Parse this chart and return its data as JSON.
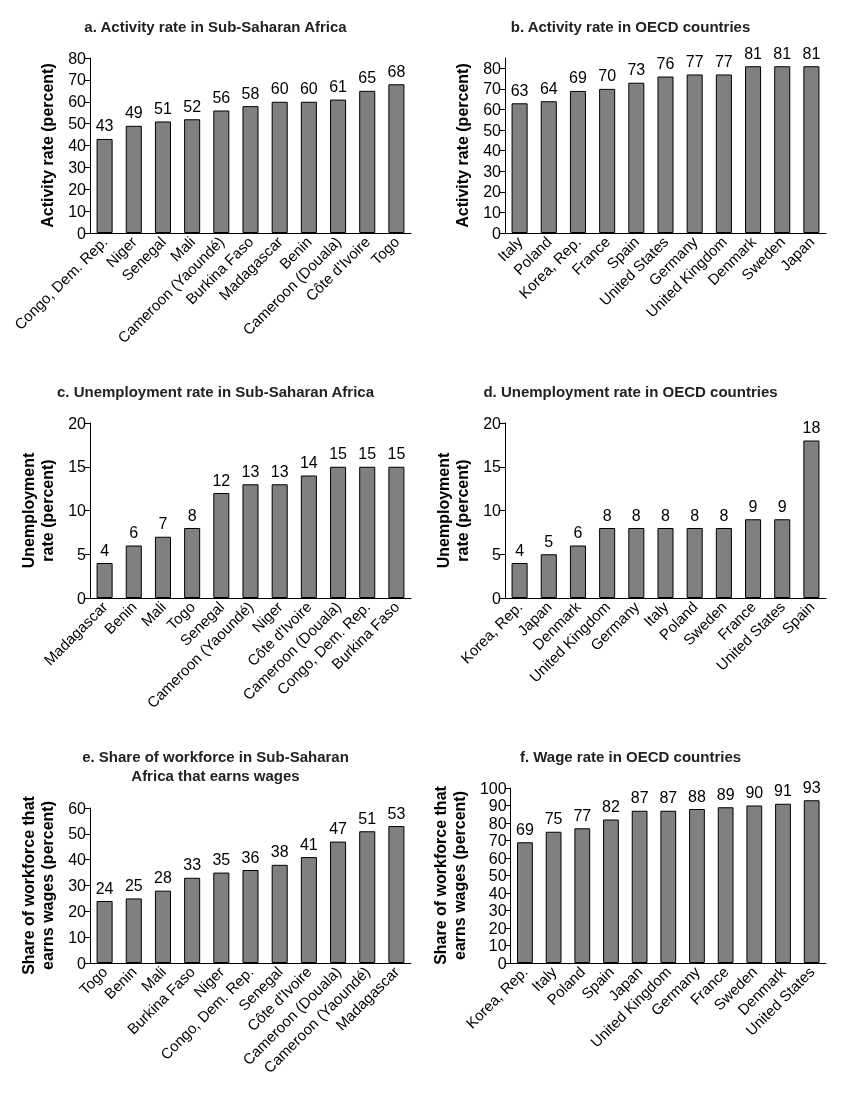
{
  "chart_data": [
    {
      "type": "bar",
      "title": "a. Activity rate in Sub-Saharan Africa",
      "ylabel": "Activity rate (percent)",
      "categories": [
        "Congo, Dem. Rep.",
        "Niger",
        "Senegal",
        "Mali",
        "Cameroon (Yaoundé)",
        "Burkina Faso",
        "Madagascar",
        "Benin",
        "Cameroon (Douala)",
        "Côte d'Ivoire",
        "Togo"
      ],
      "values": [
        43,
        49,
        51,
        52,
        56,
        58,
        60,
        60,
        61,
        65,
        68
      ],
      "color": "#808080",
      "ylim": [
        0,
        80
      ],
      "yticks": [
        0,
        10,
        20,
        30,
        40,
        50,
        60,
        70,
        80
      ],
      "data_labels": true,
      "grid": false
    },
    {
      "type": "bar",
      "title": "b. Activity rate in OECD countries",
      "ylabel": "Activity rate (percent)",
      "categories": [
        "Italy",
        "Poland",
        "Korea, Rep.",
        "France",
        "Spain",
        "United States",
        "Germany",
        "United Kingdom",
        "Denmark",
        "Sweden",
        "Japan"
      ],
      "values": [
        63,
        64,
        69,
        70,
        73,
        76,
        77,
        77,
        81,
        81,
        81
      ],
      "color": "#808080",
      "ylim": [
        0,
        85
      ],
      "yticks": [
        0,
        10,
        20,
        30,
        40,
        50,
        60,
        70,
        80
      ],
      "data_labels": true,
      "grid": false
    },
    {
      "type": "bar",
      "title": "c. Unemployment rate in Sub-Saharan Africa",
      "ylabel": "Unemployment\nrate (percent)",
      "categories": [
        "Madagascar",
        "Benin",
        "Mali",
        "Togo",
        "Senegal",
        "Cameroon (Yaoundé)",
        "Niger",
        "Côte d'Ivoire",
        "Cameroon (Douala)",
        "Congo, Dem. Rep.",
        "Burkina Faso"
      ],
      "values": [
        4,
        6,
        7,
        8,
        12,
        13,
        13,
        14,
        15,
        15,
        15
      ],
      "color": "#808080",
      "ylim": [
        0,
        20
      ],
      "yticks": [
        0,
        5,
        10,
        15,
        20
      ],
      "data_labels": true,
      "grid": false
    },
    {
      "type": "bar",
      "title": "d. Unemployment rate in OECD countries",
      "ylabel": "Unemployment\nrate (percent)",
      "categories": [
        "Korea, Rep.",
        "Japan",
        "Denmark",
        "United Kingdom",
        "Germany",
        "Italy",
        "Poland",
        "Sweden",
        "France",
        "United States",
        "Spain"
      ],
      "values": [
        4,
        5,
        6,
        8,
        8,
        8,
        8,
        8,
        9,
        9,
        18
      ],
      "color": "#808080",
      "ylim": [
        0,
        20
      ],
      "yticks": [
        0,
        5,
        10,
        15,
        20
      ],
      "data_labels": true,
      "grid": false
    },
    {
      "type": "bar",
      "title": "e. Share of workforce in Sub-Saharan\nAfrica that earns wages",
      "ylabel": "Share of workforce that\nearns wages (percent)",
      "categories": [
        "Togo",
        "Benin",
        "Mali",
        "Burkina Faso",
        "Niger",
        "Congo, Dem. Rep.",
        "Senegal",
        "Côte d'Ivoire",
        "Cameroon (Douala)",
        "Cameroon (Yaoundé)",
        "Madagascar"
      ],
      "values": [
        24,
        25,
        28,
        33,
        35,
        36,
        38,
        41,
        47,
        51,
        53
      ],
      "color": "#808080",
      "ylim": [
        0,
        60
      ],
      "yticks": [
        0,
        10,
        20,
        30,
        40,
        50,
        60
      ],
      "data_labels": true,
      "grid": false
    },
    {
      "type": "bar",
      "title": "f. Wage rate in OECD countries",
      "ylabel": "Share of workforce that\nearns wages (percent)",
      "categories": [
        "Korea, Rep.",
        "Italy",
        "Poland",
        "Spain",
        "Japan",
        "United Kingdom",
        "Germany",
        "France",
        "Sweden",
        "Denmark",
        "United States"
      ],
      "values": [
        69,
        75,
        77,
        82,
        87,
        87,
        88,
        89,
        90,
        91,
        93
      ],
      "color": "#808080",
      "ylim": [
        0,
        100
      ],
      "yticks": [
        0,
        10,
        20,
        30,
        40,
        50,
        60,
        70,
        80,
        90,
        100
      ],
      "data_labels": true,
      "grid": false
    }
  ]
}
